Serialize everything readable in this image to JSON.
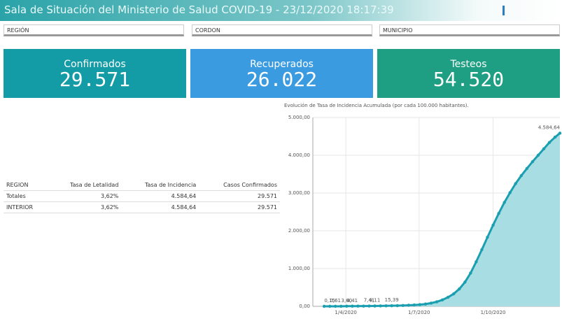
{
  "header": {
    "title": "Sala de Situación del Ministerio de Salud COVID-19 - 23/12/2020 18:17:39"
  },
  "filters": [
    "REGIÓN",
    "CORDON",
    "MUNICIPIO"
  ],
  "kpis": [
    {
      "label": "Confirmados",
      "value": "29.571"
    },
    {
      "label": "Recuperados",
      "value": "26.022"
    },
    {
      "label": "Testeos",
      "value": "54.520"
    }
  ],
  "table": {
    "columns": [
      "REGION",
      "Tasa de Letalidad",
      "Tasa de Incidencia",
      "Casos Confirmados"
    ],
    "rows": [
      [
        "Totales",
        "3,62%",
        "4.584,64",
        "29.571"
      ],
      [
        "INTERIOR",
        "3,62%",
        "4.584,64",
        "29.571"
      ]
    ]
  },
  "chart_data": {
    "type": "area",
    "title": "Evolución de Tasa de Incidencia Acumulada (por cada 100.000 habitantes).",
    "color": "#1a9fb0",
    "x": [
      "2020-03-05",
      "2020-03-12",
      "2020-03-19",
      "2020-03-26",
      "2020-04-02",
      "2020-04-09",
      "2020-04-16",
      "2020-04-23",
      "2020-04-30",
      "2020-05-07",
      "2020-05-14",
      "2020-05-21",
      "2020-05-28",
      "2020-06-04",
      "2020-06-11",
      "2020-06-18",
      "2020-06-25",
      "2020-07-02",
      "2020-07-09",
      "2020-07-16",
      "2020-07-23",
      "2020-07-30",
      "2020-08-06",
      "2020-08-13",
      "2020-08-20",
      "2020-08-27",
      "2020-09-03",
      "2020-09-10",
      "2020-09-17",
      "2020-09-24",
      "2020-10-01",
      "2020-10-08",
      "2020-10-15",
      "2020-10-22",
      "2020-10-29",
      "2020-11-05",
      "2020-11-12",
      "2020-11-19",
      "2020-11-26",
      "2020-12-03",
      "2020-12-10",
      "2020-12-17",
      "2020-12-23"
    ],
    "values": [
      0,
      0.15,
      0.61,
      1.1,
      3.6,
      4.41,
      5,
      6,
      7.41,
      9.11,
      11,
      13,
      15.39,
      18,
      22,
      28,
      35,
      45,
      60,
      85,
      120,
      170,
      240,
      330,
      460,
      640,
      880,
      1180,
      1500,
      1830,
      2150,
      2460,
      2750,
      3010,
      3250,
      3460,
      3650,
      3830,
      4000,
      4170,
      4340,
      4480,
      4584.64
    ],
    "value_labels": [
      null,
      "0,15",
      "0,61",
      null,
      "3,60",
      "4,41",
      null,
      null,
      "7,41",
      "9,11",
      null,
      null,
      "15,39",
      null,
      null,
      null,
      null,
      null,
      null,
      null,
      null,
      null,
      null,
      null,
      null,
      null,
      null,
      null,
      null,
      null,
      null,
      null,
      null,
      null,
      null,
      null,
      null,
      null,
      null,
      null,
      null,
      null,
      "4.584,64"
    ],
    "xlim": [
      "2020-02-20",
      "2020-12-23"
    ],
    "xticks": [
      {
        "value": "2020-04-01",
        "label": "1/4/2020"
      },
      {
        "value": "2020-07-01",
        "label": "1/7/2020"
      },
      {
        "value": "2020-10-01",
        "label": "1/10/2020"
      }
    ],
    "ylim": [
      0,
      5000
    ],
    "yticks": [
      {
        "value": 0,
        "label": "0,00"
      },
      {
        "value": 1000,
        "label": "1.000,00"
      },
      {
        "value": 2000,
        "label": "2.000,00"
      },
      {
        "value": 3000,
        "label": "3.000,00"
      },
      {
        "value": 4000,
        "label": "4.000,00"
      },
      {
        "value": 5000,
        "label": "5.000,00"
      }
    ],
    "grid": true
  }
}
